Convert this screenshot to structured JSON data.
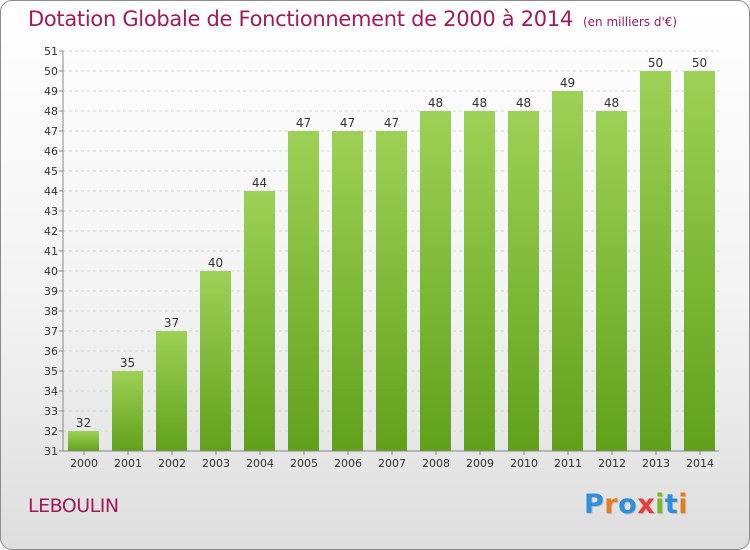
{
  "title": "Dotation Globale de Fonctionnement de 2000 à 2014",
  "subtitle": "(en milliers d'€)",
  "commune": "LEBOULIN",
  "logo_text": "Proxiti",
  "colors": {
    "title": "#a3195b",
    "bar_top": "#9dd157",
    "bar_bottom": "#61a11a",
    "gridline": "#d7d7d7",
    "logo": [
      "#2f8fd8",
      "#e57e22",
      "#2f8fd8",
      "#e83b3b",
      "#7ab82e",
      "#2f8fd8",
      "#e57e22"
    ]
  },
  "chart_data": {
    "type": "bar",
    "categories": [
      "2000",
      "2001",
      "2002",
      "2003",
      "2004",
      "2005",
      "2006",
      "2007",
      "2008",
      "2009",
      "2010",
      "2011",
      "2012",
      "2013",
      "2014"
    ],
    "values": [
      32,
      35,
      37,
      40,
      44,
      47,
      47,
      47,
      48,
      48,
      48,
      49,
      48,
      50,
      50
    ],
    "ylim": [
      31,
      51
    ],
    "yticks": [
      31,
      32,
      33,
      34,
      35,
      36,
      37,
      38,
      39,
      40,
      41,
      42,
      43,
      44,
      45,
      46,
      47,
      48,
      49,
      50,
      51
    ],
    "grid": true,
    "data_labels": true
  }
}
